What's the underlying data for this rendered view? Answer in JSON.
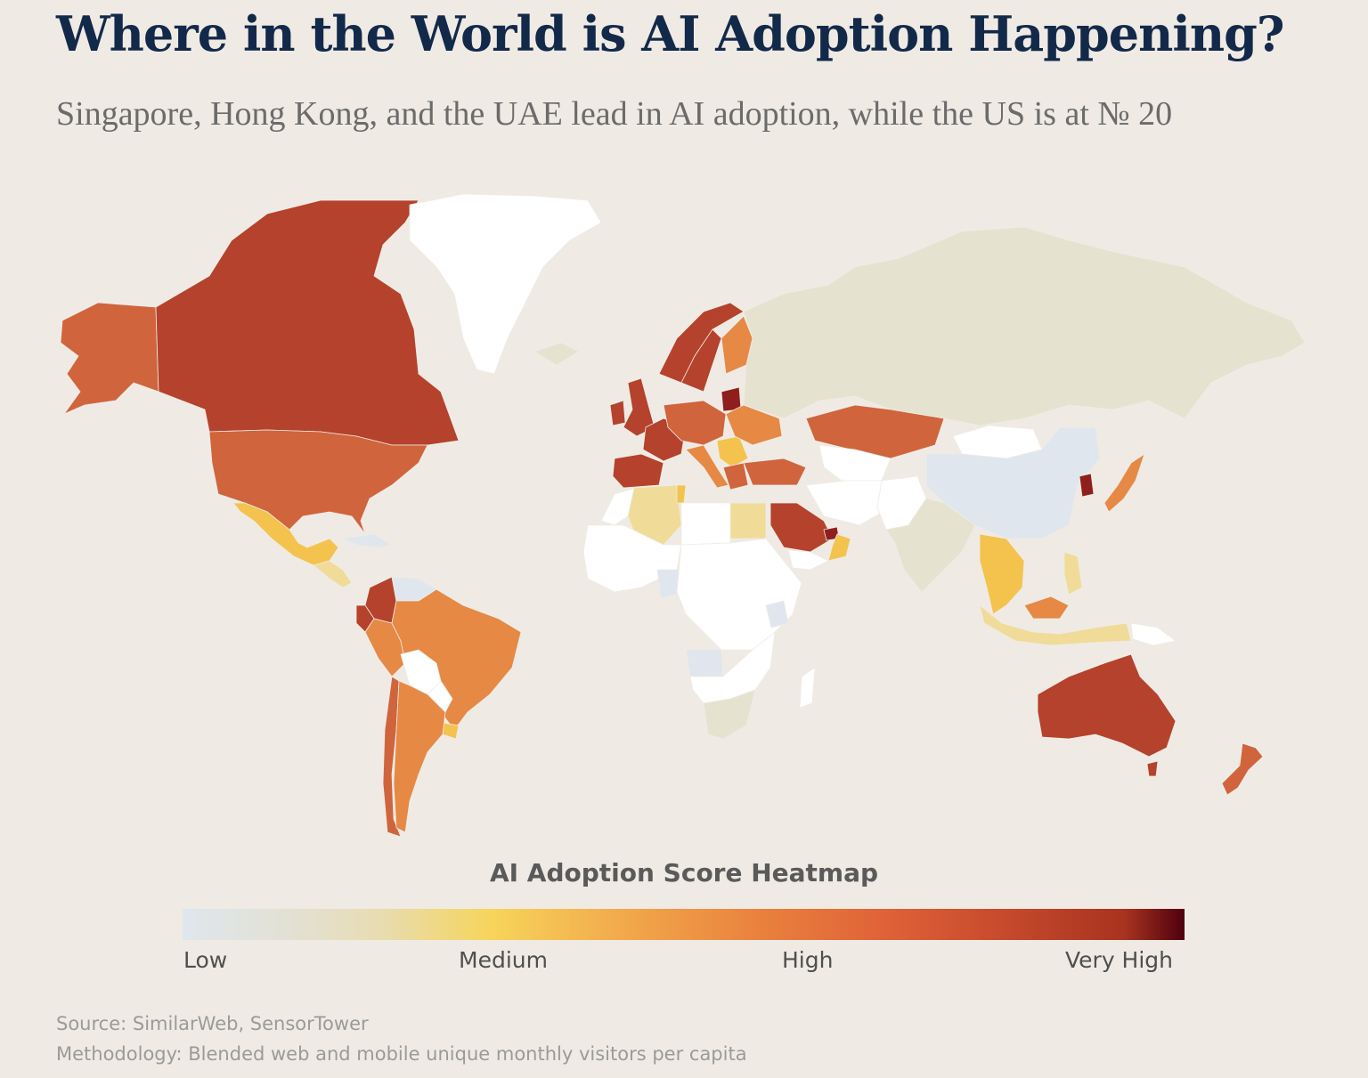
{
  "header": {
    "title": "Where in the World is AI Adoption Happening?",
    "subtitle": "Singapore, Hong Kong, and the UAE lead in AI adoption, while the US is at № 20"
  },
  "map": {
    "colors": {
      "low": "#dfe6ee",
      "none": "#ffffff",
      "neutral": "#e5e2d0",
      "medium": "#f0dc98",
      "medium_high": "#f3c34e",
      "orange": "#e58945",
      "high": "#d0643d",
      "very_high": "#b5422c",
      "top": "#8e1f1c"
    },
    "regions": [
      {
        "name": "Alaska",
        "level": "high"
      },
      {
        "name": "Canada",
        "level": "very_high"
      },
      {
        "name": "Greenland",
        "level": "none"
      },
      {
        "name": "United States",
        "level": "high"
      },
      {
        "name": "Mexico",
        "level": "medium_high"
      },
      {
        "name": "Central America",
        "level": "medium"
      },
      {
        "name": "Caribbean",
        "level": "low"
      },
      {
        "name": "Colombia",
        "level": "very_high"
      },
      {
        "name": "Venezuela",
        "level": "low"
      },
      {
        "name": "Ecuador",
        "level": "very_high"
      },
      {
        "name": "Peru",
        "level": "orange"
      },
      {
        "name": "Brazil",
        "level": "orange"
      },
      {
        "name": "Bolivia",
        "level": "none"
      },
      {
        "name": "Paraguay",
        "level": "none"
      },
      {
        "name": "Uruguay",
        "level": "medium_high"
      },
      {
        "name": "Chile",
        "level": "high"
      },
      {
        "name": "Argentina",
        "level": "orange"
      },
      {
        "name": "Iceland",
        "level": "neutral"
      },
      {
        "name": "United Kingdom",
        "level": "very_high"
      },
      {
        "name": "Ireland",
        "level": "very_high"
      },
      {
        "name": "Norway",
        "level": "very_high"
      },
      {
        "name": "Sweden",
        "level": "very_high"
      },
      {
        "name": "Finland",
        "level": "orange"
      },
      {
        "name": "Baltics",
        "level": "top"
      },
      {
        "name": "Spain & Portugal",
        "level": "very_high"
      },
      {
        "name": "France",
        "level": "very_high"
      },
      {
        "name": "Central Europe",
        "level": "high"
      },
      {
        "name": "Italy",
        "level": "orange"
      },
      {
        "name": "Balkans",
        "level": "medium_high"
      },
      {
        "name": "Eastern Europe",
        "level": "orange"
      },
      {
        "name": "Greece",
        "level": "high"
      },
      {
        "name": "Turkey",
        "level": "high"
      },
      {
        "name": "Russia",
        "level": "neutral"
      },
      {
        "name": "Kazakhstan",
        "level": "high"
      },
      {
        "name": "Central Asia",
        "level": "none"
      },
      {
        "name": "Iran",
        "level": "none"
      },
      {
        "name": "Afghanistan & Pakistan",
        "level": "none"
      },
      {
        "name": "Mongolia",
        "level": "none"
      },
      {
        "name": "China",
        "level": "low"
      },
      {
        "name": "India",
        "level": "neutral"
      },
      {
        "name": "Korea",
        "level": "top"
      },
      {
        "name": "Japan",
        "level": "orange"
      },
      {
        "name": "Saudi Arabia",
        "level": "very_high"
      },
      {
        "name": "UAE",
        "level": "top"
      },
      {
        "name": "Oman",
        "level": "medium_high"
      },
      {
        "name": "Yemen",
        "level": "none"
      },
      {
        "name": "Morocco",
        "level": "none"
      },
      {
        "name": "Algeria",
        "level": "medium"
      },
      {
        "name": "Tunisia",
        "level": "medium_high"
      },
      {
        "name": "Libya",
        "level": "none"
      },
      {
        "name": "Egypt",
        "level": "medium"
      },
      {
        "name": "West Africa",
        "level": "none"
      },
      {
        "name": "Nigeria",
        "level": "low"
      },
      {
        "name": "Central Africa",
        "level": "none"
      },
      {
        "name": "Kenya",
        "level": "low"
      },
      {
        "name": "Angola",
        "level": "low"
      },
      {
        "name": "Southern Africa",
        "level": "none"
      },
      {
        "name": "South Africa",
        "level": "neutral"
      },
      {
        "name": "Madagascar",
        "level": "none"
      },
      {
        "name": "Southeast Asia",
        "level": "medium_high"
      },
      {
        "name": "Malaysia",
        "level": "orange"
      },
      {
        "name": "Philippines",
        "level": "medium"
      },
      {
        "name": "Indonesia",
        "level": "medium"
      },
      {
        "name": "Papua New Guinea",
        "level": "none"
      },
      {
        "name": "Australia",
        "level": "very_high"
      },
      {
        "name": "New Zealand",
        "level": "high"
      }
    ]
  },
  "legend": {
    "title": "AI Adoption Score Heatmap",
    "labels": [
      "Low",
      "Medium",
      "High",
      "Very High"
    ]
  },
  "footer": {
    "source": "Source: SimilarWeb, SensorTower",
    "methodology": "Methodology: Blended web and mobile unique monthly visitors per capita"
  }
}
